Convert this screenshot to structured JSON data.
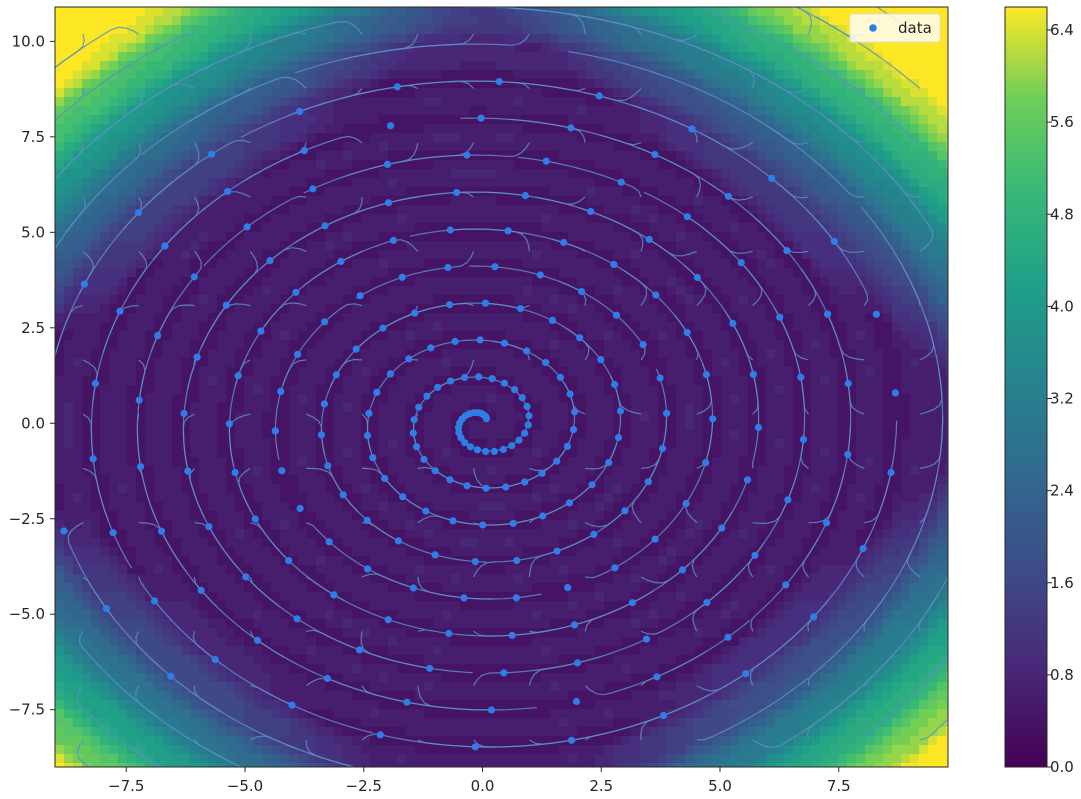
{
  "chart_data": {
    "type": "scatter",
    "title": "",
    "xlabel": "",
    "ylabel": "",
    "xlim": [
      -9.0,
      9.8
    ],
    "ylim": [
      -9.0,
      10.9
    ],
    "x_ticks": [
      -7.5,
      -5.0,
      -2.5,
      0.0,
      2.5,
      5.0,
      7.5
    ],
    "x_tick_labels": [
      "−7.5",
      "−5.0",
      "−2.5",
      "0.0",
      "2.5",
      "5.0",
      "7.5"
    ],
    "y_ticks": [
      -7.5,
      -5.0,
      -2.5,
      0.0,
      2.5,
      5.0,
      7.5,
      10.0
    ],
    "y_tick_labels": [
      "−7.5",
      "−5.0",
      "−2.5",
      "0.0",
      "2.5",
      "5.0",
      "7.5",
      "10.0"
    ],
    "grid": false,
    "legend": {
      "position": "top-right",
      "entries": [
        "data"
      ]
    },
    "series": [
      {
        "name": "data",
        "type": "scatter",
        "color": "#2e7ee8",
        "spiral": {
          "rotation_per_unit_t": 0.48,
          "radius_growth_per_unit_t": 0.074,
          "t_start": 0.0,
          "t_end": 0.1
        }
      }
    ],
    "background": {
      "type": "filled-contour",
      "colormap": "viridis",
      "levels": 32,
      "colorbar": {
        "range": [
          0.0,
          6.6
        ],
        "ticks": [
          0.0,
          0.8,
          1.6,
          2.4,
          3.2,
          4.0,
          4.8,
          5.6,
          6.4
        ],
        "tick_labels": [
          "0.0",
          "0.8",
          "1.6",
          "2.4",
          "3.2",
          "4.0",
          "4.8",
          "5.6",
          "6.4"
        ]
      }
    },
    "streamlines": {
      "color": "#5b8fc4"
    }
  }
}
